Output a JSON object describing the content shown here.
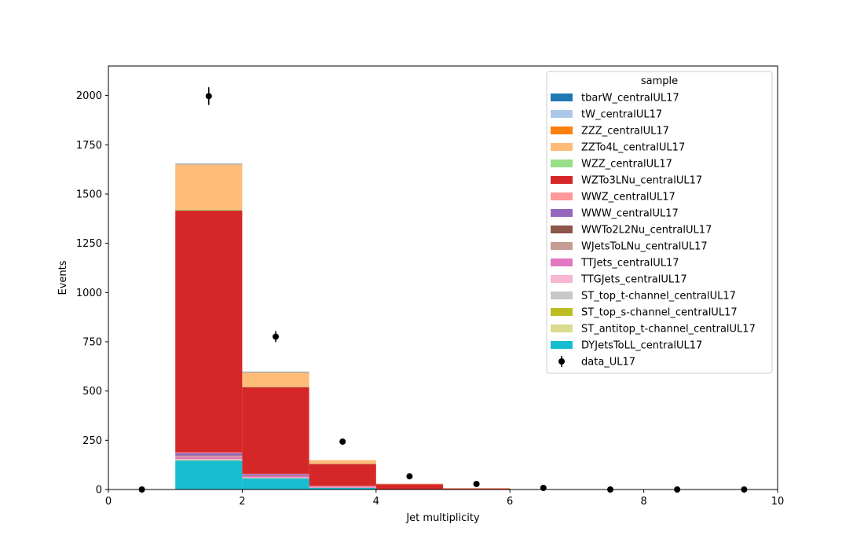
{
  "chart_data": {
    "type": "bar",
    "stacked": true,
    "histogram_type": "step-filled",
    "xlabel": "Jet multiplicity",
    "ylabel": "Events",
    "xlim": [
      0,
      10
    ],
    "ylim": [
      0,
      2150
    ],
    "xticks": [
      0,
      2,
      4,
      6,
      8,
      10
    ],
    "yticks": [
      0,
      250,
      500,
      750,
      1000,
      1250,
      1500,
      1750,
      2000
    ],
    "grid": false,
    "legend_title": "sample",
    "legend_placement": "top-right",
    "bins": [
      0,
      1,
      2,
      3,
      4,
      5,
      6,
      7,
      8,
      9,
      10
    ],
    "series_bottom_to_top": [
      {
        "name": "DYJetsToLL_centralUL17",
        "color": "#17becf",
        "values": [
          0,
          147,
          57,
          9,
          1,
          0,
          0,
          0,
          0,
          0
        ]
      },
      {
        "name": "ST_antitop_t-channel_centralUL17",
        "color": "#dbdb8d",
        "values": [
          0,
          2,
          1,
          0,
          0,
          0,
          0,
          0,
          0,
          0
        ]
      },
      {
        "name": "ST_top_s-channel_centralUL17",
        "color": "#bcbd22",
        "values": [
          0,
          1,
          0,
          0,
          0,
          0,
          0,
          0,
          0,
          0
        ]
      },
      {
        "name": "ST_top_t-channel_centralUL17",
        "color": "#c7c7c7",
        "values": [
          0,
          2,
          1,
          0,
          0,
          0,
          0,
          0,
          0,
          0
        ]
      },
      {
        "name": "TTGJets_centralUL17",
        "color": "#f7b6d2",
        "values": [
          0,
          3,
          2,
          1,
          0,
          0,
          0,
          0,
          0,
          0
        ]
      },
      {
        "name": "TTJets_centralUL17",
        "color": "#e377c2",
        "values": [
          0,
          10,
          7,
          3,
          1,
          0,
          0,
          0,
          0,
          0
        ]
      },
      {
        "name": "WJetsToLNu_centralUL17",
        "color": "#c49c94",
        "values": [
          0,
          6,
          3,
          2,
          0,
          0,
          0,
          0,
          0,
          0
        ]
      },
      {
        "name": "WWTo2L2Nu_centralUL17",
        "color": "#8c564b",
        "values": [
          0,
          2,
          1,
          0,
          0,
          0,
          0,
          0,
          0,
          0
        ]
      },
      {
        "name": "WWW_centralUL17",
        "color": "#9467bd",
        "values": [
          0,
          12,
          6,
          2,
          0,
          0,
          0,
          0,
          0,
          0
        ]
      },
      {
        "name": "WWZ_centralUL17",
        "color": "#ff9896",
        "values": [
          0,
          3,
          2,
          1,
          0,
          0,
          0,
          0,
          0,
          0
        ]
      },
      {
        "name": "WZTo3LNu_centralUL17",
        "color": "#d62728",
        "values": [
          0,
          1228,
          440,
          112,
          25,
          6,
          2,
          1,
          0,
          0
        ]
      },
      {
        "name": "WZZ_centralUL17",
        "color": "#98df8a",
        "values": [
          0,
          4,
          2,
          1,
          0,
          0,
          0,
          0,
          0,
          0
        ]
      },
      {
        "name": "ZZTo4L_centralUL17",
        "color": "#ffbb78",
        "values": [
          0,
          229,
          74,
          18,
          3,
          1,
          0,
          0,
          0,
          0
        ]
      },
      {
        "name": "ZZZ_centralUL17",
        "color": "#ff7f0e",
        "values": [
          0,
          1,
          0,
          0,
          0,
          0,
          0,
          0,
          0,
          0
        ]
      },
      {
        "name": "tW_centralUL17",
        "color": "#aec7e8",
        "values": [
          0,
          2,
          1,
          0,
          0,
          0,
          0,
          0,
          0,
          0
        ]
      },
      {
        "name": "tbarW_centralUL17",
        "color": "#1f77b4",
        "values": [
          0,
          2,
          1,
          0,
          0,
          0,
          0,
          0,
          0,
          0
        ]
      }
    ],
    "data": {
      "name": "data_UL17",
      "color": "#000000",
      "x": [
        0.5,
        1.5,
        2.5,
        3.5,
        4.5,
        5.5,
        6.5,
        7.5,
        8.5,
        9.5
      ],
      "y": [
        0,
        1997,
        776,
        243,
        67,
        28,
        8,
        0,
        0,
        0
      ],
      "yerr": [
        0,
        45,
        28,
        16,
        8,
        5,
        3,
        0,
        0,
        0
      ]
    }
  }
}
